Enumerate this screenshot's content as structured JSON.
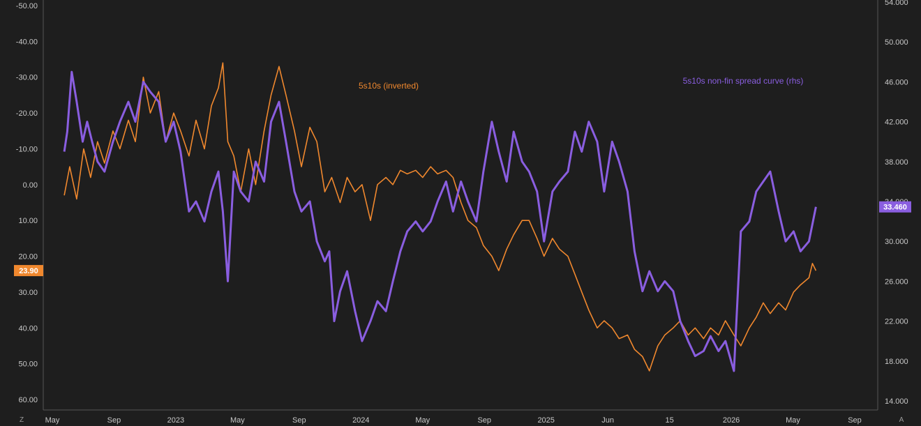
{
  "chart_data": {
    "type": "line",
    "x_ticks": [
      "May",
      "Sep",
      "2023",
      "May",
      "Sep",
      "2024",
      "May",
      "Sep",
      "2025",
      "Jun",
      "15",
      "2026",
      "May",
      "Sep"
    ],
    "left_axis": {
      "inverted": true,
      "ticks": [
        "-50.00",
        "-40.00",
        "-30.00",
        "-20.00",
        "-10.00",
        "0.00",
        "10.00",
        "20.00",
        "30.00",
        "40.00",
        "50.00",
        "60.00"
      ],
      "range": [
        -50,
        60
      ]
    },
    "right_axis": {
      "ticks": [
        "54.000",
        "50.000",
        "46.000",
        "42.000",
        "38.000",
        "34.000",
        "30.000",
        "26.000",
        "22.000",
        "18.000",
        "14.000"
      ],
      "range": [
        14,
        54
      ]
    },
    "series": [
      {
        "name": "5s10s (inverted)",
        "axis": "left",
        "color": "#f0882e",
        "last_value_label": "23.90",
        "points": [
          [
            "2022-04-25",
            3
          ],
          [
            "2022-05-06",
            -5
          ],
          [
            "2022-05-20",
            4
          ],
          [
            "2022-06-03",
            -10
          ],
          [
            "2022-06-17",
            -2
          ],
          [
            "2022-07-01",
            -12
          ],
          [
            "2022-07-15",
            -6
          ],
          [
            "2022-08-01",
            -15
          ],
          [
            "2022-08-15",
            -10
          ],
          [
            "2022-09-01",
            -18
          ],
          [
            "2022-09-15",
            -12
          ],
          [
            "2022-10-01",
            -30
          ],
          [
            "2022-10-15",
            -20
          ],
          [
            "2022-11-01",
            -26
          ],
          [
            "2022-11-15",
            -12
          ],
          [
            "2022-12-01",
            -20
          ],
          [
            "2022-12-15",
            -15
          ],
          [
            "2023-01-01",
            -8
          ],
          [
            "2023-01-15",
            -18
          ],
          [
            "2023-02-01",
            -10
          ],
          [
            "2023-02-15",
            -22
          ],
          [
            "2023-03-01",
            -27
          ],
          [
            "2023-03-10",
            -34
          ],
          [
            "2023-03-20",
            -12
          ],
          [
            "2023-04-01",
            -8
          ],
          [
            "2023-04-15",
            2
          ],
          [
            "2023-05-01",
            -10
          ],
          [
            "2023-05-15",
            0
          ],
          [
            "2023-06-01",
            -15
          ],
          [
            "2023-06-15",
            -25
          ],
          [
            "2023-07-01",
            -33
          ],
          [
            "2023-07-15",
            -25
          ],
          [
            "2023-08-01",
            -15
          ],
          [
            "2023-08-15",
            -5
          ],
          [
            "2023-09-01",
            -16
          ],
          [
            "2023-09-15",
            -12
          ],
          [
            "2023-10-01",
            2
          ],
          [
            "2023-10-15",
            -2
          ],
          [
            "2023-11-01",
            5
          ],
          [
            "2023-11-15",
            -2
          ],
          [
            "2023-12-01",
            2
          ],
          [
            "2023-12-15",
            0
          ],
          [
            "2024-01-01",
            10
          ],
          [
            "2024-01-15",
            0
          ],
          [
            "2024-02-01",
            -2
          ],
          [
            "2024-02-15",
            0
          ],
          [
            "2024-03-01",
            -4
          ],
          [
            "2024-03-15",
            -3
          ],
          [
            "2024-04-01",
            -4
          ],
          [
            "2024-04-15",
            -2
          ],
          [
            "2024-05-01",
            -5
          ],
          [
            "2024-05-15",
            -3
          ],
          [
            "2024-06-01",
            -4
          ],
          [
            "2024-06-15",
            -2
          ],
          [
            "2024-07-01",
            5
          ],
          [
            "2024-07-15",
            10
          ],
          [
            "2024-08-01",
            12
          ],
          [
            "2024-08-15",
            17
          ],
          [
            "2024-09-01",
            20
          ],
          [
            "2024-09-15",
            24
          ],
          [
            "2024-10-01",
            18
          ],
          [
            "2024-10-15",
            14
          ],
          [
            "2024-11-01",
            10
          ],
          [
            "2024-11-15",
            10
          ],
          [
            "2024-12-01",
            15
          ],
          [
            "2024-12-15",
            20
          ],
          [
            "2025-01-01",
            15
          ],
          [
            "2025-01-15",
            18
          ],
          [
            "2025-02-01",
            20
          ],
          [
            "2025-02-15",
            25
          ],
          [
            "2025-03-01",
            30
          ],
          [
            "2025-03-15",
            35
          ],
          [
            "2025-04-01",
            40
          ],
          [
            "2025-04-15",
            38
          ],
          [
            "2025-05-01",
            40
          ],
          [
            "2025-05-15",
            43
          ],
          [
            "2025-06-01",
            42
          ],
          [
            "2025-06-15",
            46
          ],
          [
            "2025-07-01",
            48
          ],
          [
            "2025-07-15",
            52
          ],
          [
            "2025-08-01",
            45
          ],
          [
            "2025-08-15",
            42
          ],
          [
            "2025-09-01",
            40
          ],
          [
            "2025-09-15",
            38
          ],
          [
            "2025-10-01",
            42
          ],
          [
            "2025-10-15",
            40
          ],
          [
            "2025-11-01",
            43
          ],
          [
            "2025-11-15",
            40
          ],
          [
            "2025-12-01",
            42
          ],
          [
            "2025-12-15",
            38
          ],
          [
            "2026-01-01",
            42
          ],
          [
            "2026-01-15",
            45
          ],
          [
            "2026-02-01",
            40
          ],
          [
            "2026-02-15",
            37
          ],
          [
            "2026-03-01",
            33
          ],
          [
            "2026-03-15",
            36
          ],
          [
            "2026-04-01",
            33
          ],
          [
            "2026-04-15",
            35
          ],
          [
            "2026-05-01",
            30
          ],
          [
            "2026-05-15",
            28
          ],
          [
            "2026-06-01",
            26
          ],
          [
            "2026-06-08",
            22
          ],
          [
            "2026-06-15",
            24
          ]
        ]
      },
      {
        "name": "5s10s non-fin spread curve (rhs)",
        "axis": "right",
        "color": "#8a5ee0",
        "last_value_label": "33.460",
        "points": [
          [
            "2022-04-25",
            39
          ],
          [
            "2022-05-01",
            41
          ],
          [
            "2022-05-10",
            47
          ],
          [
            "2022-05-20",
            44
          ],
          [
            "2022-06-01",
            40
          ],
          [
            "2022-06-10",
            42
          ],
          [
            "2022-06-20",
            40
          ],
          [
            "2022-07-01",
            38
          ],
          [
            "2022-07-15",
            37
          ],
          [
            "2022-08-01",
            40
          ],
          [
            "2022-08-15",
            42
          ],
          [
            "2022-09-01",
            44
          ],
          [
            "2022-09-15",
            42
          ],
          [
            "2022-10-01",
            46
          ],
          [
            "2022-10-15",
            45
          ],
          [
            "2022-11-01",
            44
          ],
          [
            "2022-11-15",
            40
          ],
          [
            "2022-12-01",
            42
          ],
          [
            "2022-12-15",
            39
          ],
          [
            "2023-01-01",
            33
          ],
          [
            "2023-01-15",
            34
          ],
          [
            "2023-02-01",
            32
          ],
          [
            "2023-02-15",
            35
          ],
          [
            "2023-03-01",
            37
          ],
          [
            "2023-03-10",
            33
          ],
          [
            "2023-03-20",
            26
          ],
          [
            "2023-04-01",
            37
          ],
          [
            "2023-04-15",
            35
          ],
          [
            "2023-05-01",
            34
          ],
          [
            "2023-05-15",
            38
          ],
          [
            "2023-06-01",
            36
          ],
          [
            "2023-06-15",
            42
          ],
          [
            "2023-07-01",
            44
          ],
          [
            "2023-07-15",
            40
          ],
          [
            "2023-08-01",
            35
          ],
          [
            "2023-08-15",
            33
          ],
          [
            "2023-09-01",
            34
          ],
          [
            "2023-09-15",
            30
          ],
          [
            "2023-10-01",
            28
          ],
          [
            "2023-10-10",
            29
          ],
          [
            "2023-10-20",
            22
          ],
          [
            "2023-11-01",
            25
          ],
          [
            "2023-11-15",
            27
          ],
          [
            "2023-12-01",
            23
          ],
          [
            "2023-12-15",
            20
          ],
          [
            "2024-01-01",
            22
          ],
          [
            "2024-01-15",
            24
          ],
          [
            "2024-02-01",
            23
          ],
          [
            "2024-02-15",
            26
          ],
          [
            "2024-03-01",
            29
          ],
          [
            "2024-03-15",
            31
          ],
          [
            "2024-04-01",
            32
          ],
          [
            "2024-04-15",
            31
          ],
          [
            "2024-05-01",
            32
          ],
          [
            "2024-05-15",
            34
          ],
          [
            "2024-06-01",
            36
          ],
          [
            "2024-06-15",
            33
          ],
          [
            "2024-07-01",
            36
          ],
          [
            "2024-07-15",
            34
          ],
          [
            "2024-08-01",
            32
          ],
          [
            "2024-08-15",
            37
          ],
          [
            "2024-09-01",
            42
          ],
          [
            "2024-09-15",
            39
          ],
          [
            "2024-10-01",
            36
          ],
          [
            "2024-10-15",
            41
          ],
          [
            "2024-11-01",
            38
          ],
          [
            "2024-11-15",
            37
          ],
          [
            "2024-12-01",
            35
          ],
          [
            "2024-12-15",
            30
          ],
          [
            "2025-01-01",
            35
          ],
          [
            "2025-01-15",
            36
          ],
          [
            "2025-02-01",
            37
          ],
          [
            "2025-02-15",
            41
          ],
          [
            "2025-03-01",
            39
          ],
          [
            "2025-03-15",
            42
          ],
          [
            "2025-04-01",
            40
          ],
          [
            "2025-04-15",
            35
          ],
          [
            "2025-05-01",
            40
          ],
          [
            "2025-05-15",
            38
          ],
          [
            "2025-06-01",
            35
          ],
          [
            "2025-06-15",
            29
          ],
          [
            "2025-07-01",
            25
          ],
          [
            "2025-07-15",
            27
          ],
          [
            "2025-08-01",
            25
          ],
          [
            "2025-08-15",
            26
          ],
          [
            "2025-09-01",
            25
          ],
          [
            "2025-09-15",
            22
          ],
          [
            "2025-10-01",
            20
          ],
          [
            "2025-10-15",
            18.5
          ],
          [
            "2025-11-01",
            19
          ],
          [
            "2025-11-15",
            20.5
          ],
          [
            "2025-12-01",
            19
          ],
          [
            "2025-12-15",
            20
          ],
          [
            "2026-01-01",
            17
          ],
          [
            "2026-01-15",
            31
          ],
          [
            "2026-02-01",
            32
          ],
          [
            "2026-02-15",
            35
          ],
          [
            "2026-03-01",
            36
          ],
          [
            "2026-03-15",
            37
          ],
          [
            "2026-04-01",
            33
          ],
          [
            "2026-04-15",
            30
          ],
          [
            "2026-05-01",
            31
          ],
          [
            "2026-05-15",
            29
          ],
          [
            "2026-06-01",
            30
          ],
          [
            "2026-06-15",
            33.46
          ]
        ]
      }
    ],
    "grid": false,
    "legend_placement": "top"
  },
  "corner_labels": {
    "left": "Z",
    "right": "A"
  }
}
